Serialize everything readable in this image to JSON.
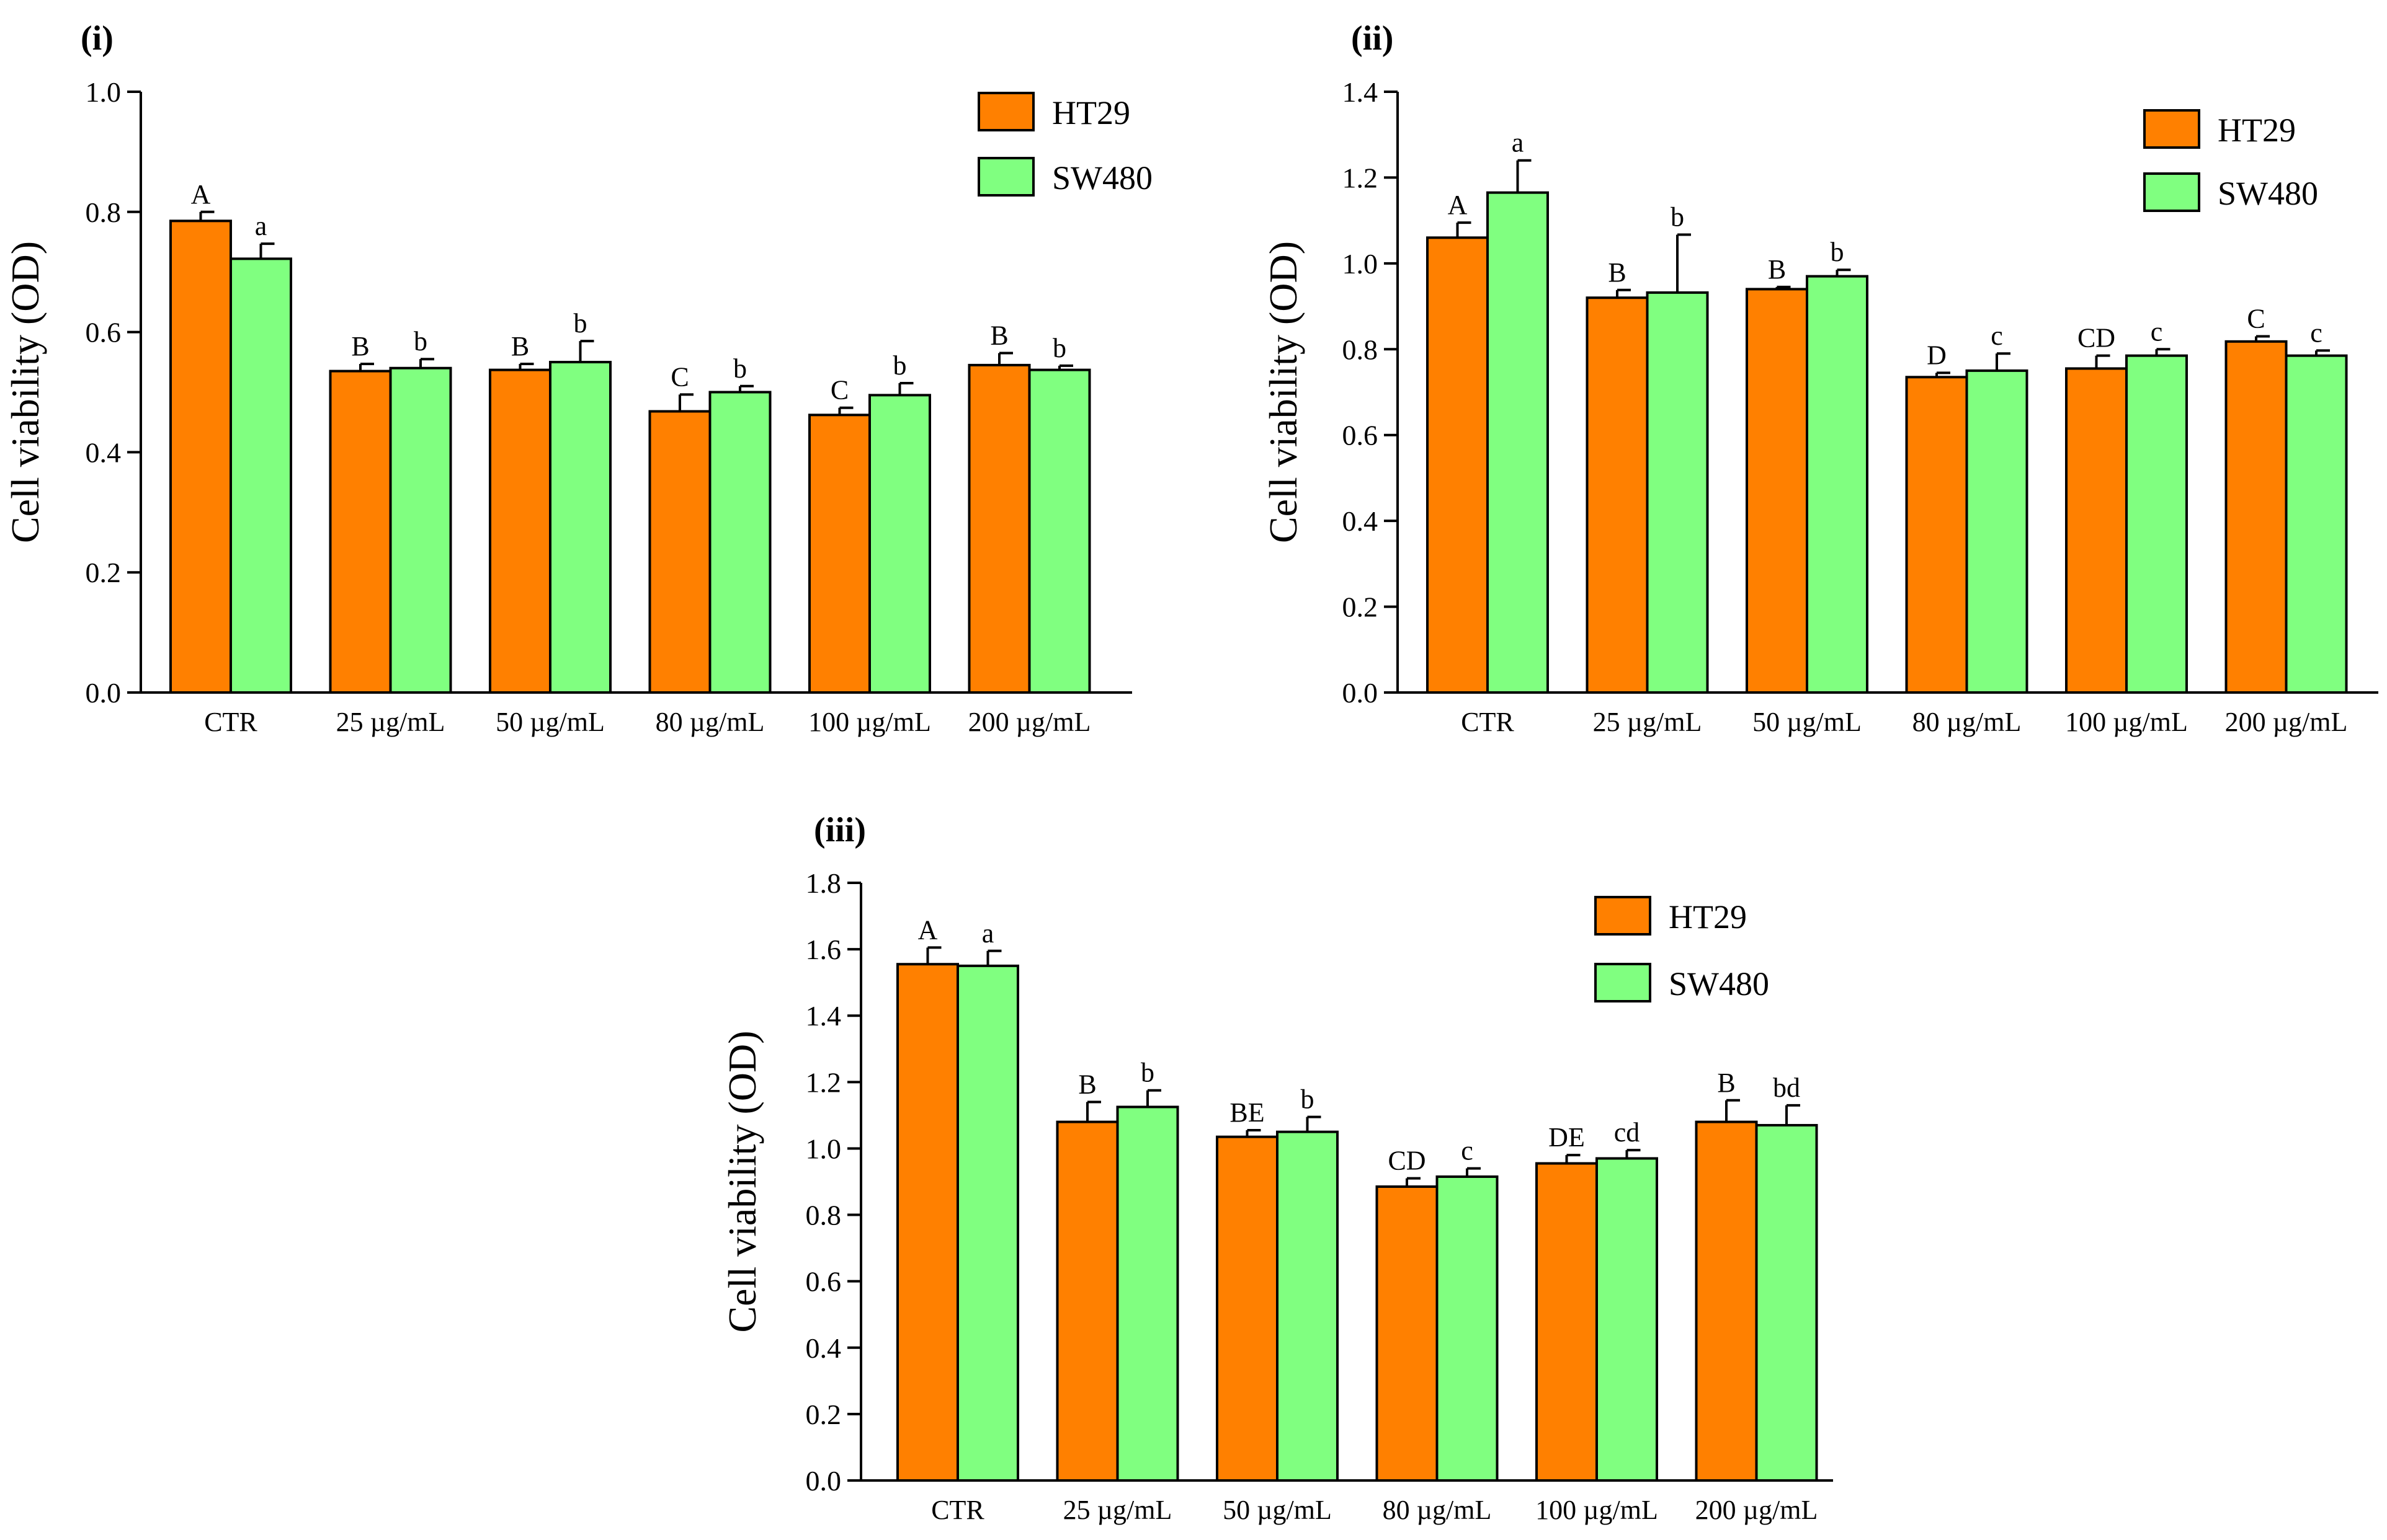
{
  "colors": {
    "ht29": "#FF8000",
    "sw480": "#80FF80",
    "axis": "#000000"
  },
  "chart_data": [
    {
      "type": "bar",
      "panel_label": "(i)",
      "ylabel": "Cell viability (OD)",
      "ylim": [
        0,
        1.0
      ],
      "yticks": [
        "0.0",
        "0.2",
        "0.4",
        "0.6",
        "0.8",
        "1.0"
      ],
      "categories": [
        "CTR",
        "25 µg/mL",
        "50 µg/mL",
        "80 µg/mL",
        "100 µg/mL",
        "200 µg/mL"
      ],
      "legend_position": "top-right",
      "series": [
        {
          "name": "HT29",
          "values": [
            0.785,
            0.535,
            0.537,
            0.468,
            0.462,
            0.545
          ],
          "errors": [
            0.015,
            0.012,
            0.01,
            0.028,
            0.012,
            0.02
          ],
          "letters": [
            "A",
            "B",
            "B",
            "C",
            "C",
            "B"
          ]
        },
        {
          "name": "SW480",
          "values": [
            0.722,
            0.54,
            0.55,
            0.5,
            0.495,
            0.537
          ],
          "errors": [
            0.025,
            0.015,
            0.035,
            0.01,
            0.02,
            0.007
          ],
          "letters": [
            "a",
            "b",
            "b",
            "b",
            "b",
            "b"
          ]
        }
      ]
    },
    {
      "type": "bar",
      "panel_label": "(ii)",
      "ylabel": "Cell viability (OD)",
      "ylim": [
        0,
        1.4
      ],
      "yticks": [
        "0.0",
        "0.2",
        "0.4",
        "0.6",
        "0.8",
        "1.0",
        "1.2",
        "1.4"
      ],
      "categories": [
        "CTR",
        "25 µg/mL",
        "50 µg/mL",
        "80 µg/mL",
        "100 µg/mL",
        "200 µg/mL"
      ],
      "legend_position": "top-right",
      "series": [
        {
          "name": "HT29",
          "values": [
            1.06,
            0.92,
            0.94,
            0.735,
            0.755,
            0.818
          ],
          "errors": [
            0.035,
            0.018,
            0.005,
            0.01,
            0.03,
            0.012
          ],
          "letters": [
            "A",
            "B",
            "B",
            "D",
            "CD",
            "C"
          ]
        },
        {
          "name": "SW480",
          "values": [
            1.165,
            0.932,
            0.97,
            0.75,
            0.785,
            0.785
          ],
          "errors": [
            0.075,
            0.135,
            0.015,
            0.04,
            0.015,
            0.012
          ],
          "letters": [
            "a",
            "b",
            "b",
            "c",
            "c",
            "c"
          ]
        }
      ]
    },
    {
      "type": "bar",
      "panel_label": "(iii)",
      "ylabel": "Cell viability (OD)",
      "ylim": [
        0,
        1.8
      ],
      "yticks": [
        "0.0",
        "0.2",
        "0.4",
        "0.6",
        "0.8",
        "1.0",
        "1.2",
        "1.4",
        "1.6",
        "1.8"
      ],
      "categories": [
        "CTR",
        "25 µg/mL",
        "50 µg/mL",
        "80 µg/mL",
        "100 µg/mL",
        "200 µg/mL"
      ],
      "legend_position": "top-right",
      "series": [
        {
          "name": "HT29",
          "values": [
            1.555,
            1.08,
            1.035,
            0.885,
            0.955,
            1.08
          ],
          "errors": [
            0.05,
            0.06,
            0.02,
            0.025,
            0.025,
            0.065
          ],
          "letters": [
            "A",
            "B",
            "BE",
            "CD",
            "DE",
            "B"
          ]
        },
        {
          "name": "SW480",
          "values": [
            1.55,
            1.125,
            1.05,
            0.915,
            0.97,
            1.07
          ],
          "errors": [
            0.045,
            0.05,
            0.045,
            0.025,
            0.025,
            0.06
          ],
          "letters": [
            "a",
            "b",
            "b",
            "c",
            "cd",
            "bd"
          ]
        }
      ]
    }
  ]
}
